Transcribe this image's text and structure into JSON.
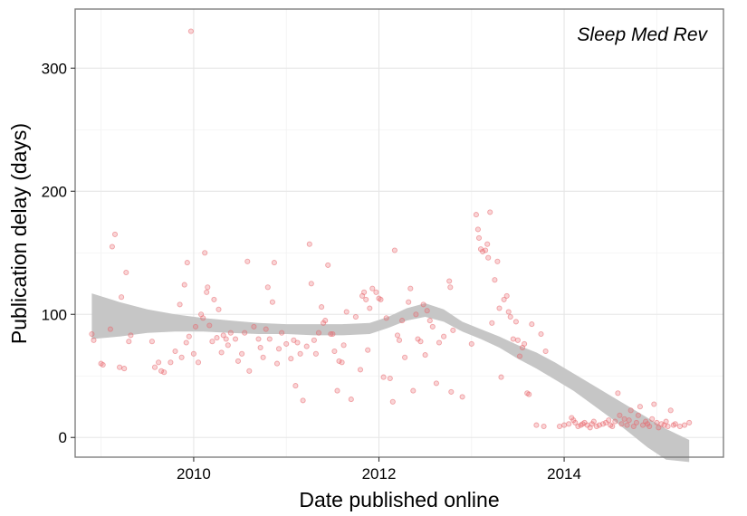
{
  "chart_data": {
    "type": "scatter",
    "annotation": "Sleep Med Rev",
    "xlabel": "Date published online",
    "ylabel": "Publication delay (days)",
    "xlim": [
      2008.72,
      2015.72
    ],
    "ylim": [
      -16,
      348
    ],
    "x_ticks": [
      2010,
      2012,
      2014
    ],
    "x_tick_labels": [
      "2010",
      "2012",
      "2014"
    ],
    "y_ticks": [
      0,
      100,
      200,
      300
    ],
    "y_tick_labels": [
      "0",
      "100",
      "200",
      "300"
    ],
    "grid": true,
    "point_color": "#e8666b",
    "smooth_band_color": "#c6c6c6",
    "smooth_band": {
      "x": [
        2008.9,
        2009.2,
        2009.5,
        2009.8,
        2010.1,
        2010.4,
        2010.7,
        2011.0,
        2011.3,
        2011.6,
        2011.9,
        2012.1,
        2012.3,
        2012.5,
        2012.7,
        2012.9,
        2013.1,
        2013.3,
        2013.5,
        2013.7,
        2013.9,
        2014.1,
        2014.3,
        2014.5,
        2014.7,
        2014.9,
        2015.1,
        2015.35
      ],
      "upper": [
        117,
        110,
        104,
        100,
        97,
        95,
        93,
        92,
        92,
        92,
        93,
        98,
        105,
        109,
        104,
        94,
        88,
        82,
        75,
        69,
        61,
        52,
        43,
        34,
        25,
        16,
        7,
        -2
      ],
      "lower": [
        80,
        82,
        85,
        86,
        86,
        85,
        84,
        84,
        83,
        83,
        84,
        89,
        95,
        98,
        94,
        86,
        80,
        73,
        64,
        56,
        47,
        38,
        27,
        16,
        4,
        -8,
        -18,
        -20
      ]
    },
    "points": [
      [
        2008.9,
        84
      ],
      [
        2008.92,
        79
      ],
      [
        2009.0,
        60
      ],
      [
        2009.02,
        59
      ],
      [
        2009.1,
        88
      ],
      [
        2009.12,
        155
      ],
      [
        2009.15,
        165
      ],
      [
        2009.2,
        57
      ],
      [
        2009.22,
        114
      ],
      [
        2009.25,
        56
      ],
      [
        2009.27,
        134
      ],
      [
        2009.3,
        78
      ],
      [
        2009.32,
        83
      ],
      [
        2009.55,
        78
      ],
      [
        2009.58,
        57
      ],
      [
        2009.62,
        61
      ],
      [
        2009.65,
        54
      ],
      [
        2009.68,
        53
      ],
      [
        2009.75,
        61
      ],
      [
        2009.8,
        70
      ],
      [
        2009.85,
        108
      ],
      [
        2009.87,
        65
      ],
      [
        2009.9,
        124
      ],
      [
        2009.92,
        77
      ],
      [
        2009.93,
        142
      ],
      [
        2009.95,
        82
      ],
      [
        2009.97,
        330
      ],
      [
        2010.0,
        68
      ],
      [
        2010.02,
        90
      ],
      [
        2010.05,
        61
      ],
      [
        2010.08,
        100
      ],
      [
        2010.1,
        97
      ],
      [
        2010.12,
        150
      ],
      [
        2010.14,
        118
      ],
      [
        2010.15,
        122
      ],
      [
        2010.17,
        91
      ],
      [
        2010.2,
        78
      ],
      [
        2010.22,
        112
      ],
      [
        2010.25,
        81
      ],
      [
        2010.27,
        104
      ],
      [
        2010.3,
        69
      ],
      [
        2010.32,
        83
      ],
      [
        2010.35,
        80
      ],
      [
        2010.37,
        75
      ],
      [
        2010.4,
        85
      ],
      [
        2010.45,
        80
      ],
      [
        2010.48,
        62
      ],
      [
        2010.52,
        68
      ],
      [
        2010.55,
        85
      ],
      [
        2010.58,
        143
      ],
      [
        2010.6,
        54
      ],
      [
        2010.65,
        90
      ],
      [
        2010.7,
        80
      ],
      [
        2010.72,
        73
      ],
      [
        2010.75,
        65
      ],
      [
        2010.78,
        88
      ],
      [
        2010.8,
        122
      ],
      [
        2010.82,
        80
      ],
      [
        2010.85,
        110
      ],
      [
        2010.87,
        142
      ],
      [
        2010.9,
        60
      ],
      [
        2010.92,
        72
      ],
      [
        2010.95,
        85
      ],
      [
        2011.0,
        76
      ],
      [
        2011.05,
        64
      ],
      [
        2011.08,
        79
      ],
      [
        2011.1,
        42
      ],
      [
        2011.12,
        77
      ],
      [
        2011.15,
        68
      ],
      [
        2011.18,
        30
      ],
      [
        2011.22,
        74
      ],
      [
        2011.25,
        157
      ],
      [
        2011.27,
        125
      ],
      [
        2011.3,
        79
      ],
      [
        2011.32,
        68
      ],
      [
        2011.35,
        85
      ],
      [
        2011.38,
        106
      ],
      [
        2011.4,
        93
      ],
      [
        2011.42,
        95
      ],
      [
        2011.45,
        140
      ],
      [
        2011.48,
        84
      ],
      [
        2011.5,
        84
      ],
      [
        2011.52,
        70
      ],
      [
        2011.55,
        38
      ],
      [
        2011.57,
        62
      ],
      [
        2011.6,
        61
      ],
      [
        2011.62,
        75
      ],
      [
        2011.65,
        102
      ],
      [
        2011.7,
        31
      ],
      [
        2011.75,
        98
      ],
      [
        2011.8,
        55
      ],
      [
        2011.82,
        115
      ],
      [
        2011.84,
        118
      ],
      [
        2011.86,
        112
      ],
      [
        2011.88,
        71
      ],
      [
        2011.9,
        105
      ],
      [
        2011.93,
        121
      ],
      [
        2011.97,
        118
      ],
      [
        2012.0,
        113
      ],
      [
        2012.02,
        112
      ],
      [
        2012.05,
        49
      ],
      [
        2012.08,
        97
      ],
      [
        2012.12,
        48
      ],
      [
        2012.15,
        29
      ],
      [
        2012.17,
        152
      ],
      [
        2012.2,
        83
      ],
      [
        2012.22,
        79
      ],
      [
        2012.25,
        95
      ],
      [
        2012.28,
        65
      ],
      [
        2012.32,
        110
      ],
      [
        2012.34,
        121
      ],
      [
        2012.37,
        38
      ],
      [
        2012.4,
        100
      ],
      [
        2012.42,
        80
      ],
      [
        2012.45,
        78
      ],
      [
        2012.48,
        108
      ],
      [
        2012.5,
        67
      ],
      [
        2012.52,
        103
      ],
      [
        2012.55,
        95
      ],
      [
        2012.58,
        90
      ],
      [
        2012.62,
        44
      ],
      [
        2012.65,
        77
      ],
      [
        2012.7,
        82
      ],
      [
        2012.76,
        127
      ],
      [
        2012.77,
        122
      ],
      [
        2012.78,
        37
      ],
      [
        2012.8,
        87
      ],
      [
        2012.9,
        33
      ],
      [
        2013.0,
        76
      ],
      [
        2013.05,
        181
      ],
      [
        2013.07,
        169
      ],
      [
        2013.08,
        162
      ],
      [
        2013.1,
        153
      ],
      [
        2013.12,
        151
      ],
      [
        2013.15,
        152
      ],
      [
        2013.17,
        157
      ],
      [
        2013.18,
        146
      ],
      [
        2013.2,
        183
      ],
      [
        2013.22,
        93
      ],
      [
        2013.25,
        128
      ],
      [
        2013.28,
        143
      ],
      [
        2013.3,
        105
      ],
      [
        2013.32,
        49
      ],
      [
        2013.35,
        112
      ],
      [
        2013.38,
        115
      ],
      [
        2013.4,
        102
      ],
      [
        2013.42,
        98
      ],
      [
        2013.45,
        80
      ],
      [
        2013.48,
        94
      ],
      [
        2013.5,
        79
      ],
      [
        2013.52,
        66
      ],
      [
        2013.55,
        73
      ],
      [
        2013.57,
        76
      ],
      [
        2013.6,
        36
      ],
      [
        2013.62,
        35
      ],
      [
        2013.65,
        92
      ],
      [
        2013.7,
        10
      ],
      [
        2013.75,
        84
      ],
      [
        2013.78,
        9
      ],
      [
        2013.8,
        70
      ],
      [
        2013.95,
        9
      ],
      [
        2014.0,
        10
      ],
      [
        2014.05,
        11
      ],
      [
        2014.08,
        16
      ],
      [
        2014.1,
        14
      ],
      [
        2014.12,
        12
      ],
      [
        2014.15,
        9
      ],
      [
        2014.18,
        10
      ],
      [
        2014.2,
        11
      ],
      [
        2014.22,
        12
      ],
      [
        2014.25,
        10
      ],
      [
        2014.28,
        8
      ],
      [
        2014.3,
        11
      ],
      [
        2014.32,
        13
      ],
      [
        2014.35,
        9
      ],
      [
        2014.38,
        10
      ],
      [
        2014.42,
        11
      ],
      [
        2014.45,
        12
      ],
      [
        2014.48,
        14
      ],
      [
        2014.5,
        10
      ],
      [
        2014.52,
        9
      ],
      [
        2014.55,
        13
      ],
      [
        2014.58,
        36
      ],
      [
        2014.6,
        18
      ],
      [
        2014.62,
        11
      ],
      [
        2014.65,
        15
      ],
      [
        2014.68,
        10
      ],
      [
        2014.7,
        14
      ],
      [
        2014.72,
        22
      ],
      [
        2014.75,
        9
      ],
      [
        2014.78,
        12
      ],
      [
        2014.8,
        18
      ],
      [
        2014.82,
        25
      ],
      [
        2014.85,
        10
      ],
      [
        2014.88,
        13
      ],
      [
        2014.9,
        11
      ],
      [
        2014.92,
        9
      ],
      [
        2014.95,
        15
      ],
      [
        2014.97,
        27
      ],
      [
        2015.0,
        12
      ],
      [
        2015.02,
        8
      ],
      [
        2015.05,
        11
      ],
      [
        2015.08,
        10
      ],
      [
        2015.1,
        13
      ],
      [
        2015.12,
        9
      ],
      [
        2015.15,
        22
      ],
      [
        2015.18,
        10
      ],
      [
        2015.2,
        11
      ],
      [
        2015.25,
        9
      ],
      [
        2015.3,
        10
      ],
      [
        2015.35,
        12
      ]
    ]
  }
}
